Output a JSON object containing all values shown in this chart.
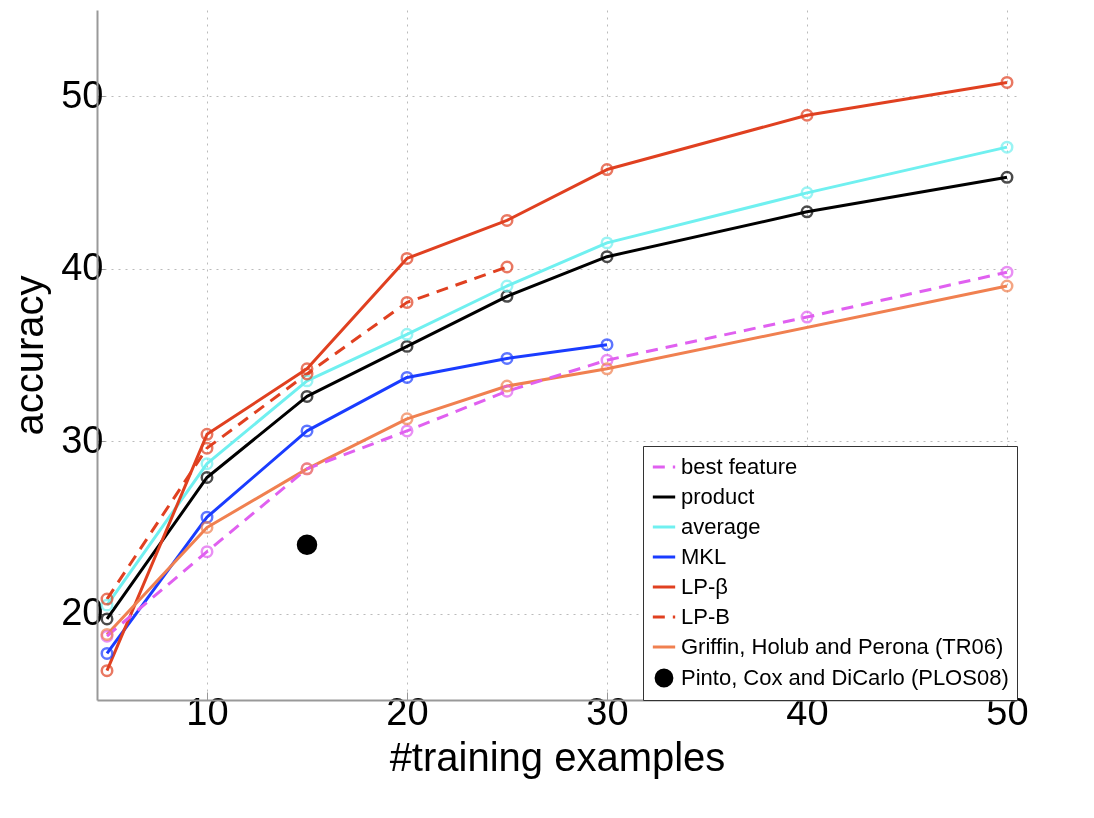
{
  "chart_data": {
    "type": "line",
    "xlabel": "#training examples",
    "ylabel": "accuracy",
    "xlim": [
      4.5,
      50.5
    ],
    "ylim": [
      15,
      55
    ],
    "xticks": [
      10,
      20,
      30,
      40,
      50
    ],
    "yticks": [
      20,
      30,
      40,
      50
    ],
    "grid": true,
    "legend": "bottom right",
    "marker": "circle",
    "line_style": "solid",
    "series": [
      {
        "name": "best feature",
        "color": "#e060f0",
        "line_style": "dashed",
        "x": [
          5,
          10,
          15,
          20,
          25,
          30,
          40,
          50
        ],
        "values": [
          18.7,
          23.6,
          28.4,
          30.6,
          32.9,
          34.7,
          37.2,
          39.8
        ]
      },
      {
        "name": "product",
        "color": "#000000",
        "x": [
          5,
          10,
          15,
          20,
          25,
          30,
          40,
          50
        ],
        "values": [
          19.7,
          27.9,
          32.6,
          35.5,
          38.4,
          40.7,
          43.3,
          45.3
        ]
      },
      {
        "name": "average",
        "color": "#70f0f0",
        "x": [
          5,
          10,
          15,
          20,
          25,
          30,
          40,
          50
        ],
        "values": [
          20.5,
          28.7,
          33.5,
          36.2,
          39.0,
          41.5,
          44.4,
          47.05
        ]
      },
      {
        "name": "MKL",
        "color": "#1a3cff",
        "x": [
          5,
          10,
          15,
          20,
          25,
          30
        ],
        "values": [
          17.7,
          25.6,
          30.6,
          33.7,
          34.8,
          35.6
        ]
      },
      {
        "name": "LP-β",
        "color": "#e04020",
        "x": [
          5,
          10,
          15,
          20,
          25,
          30,
          40,
          50
        ],
        "values": [
          16.7,
          30.4,
          34.2,
          40.6,
          42.8,
          45.75,
          48.9,
          50.8
        ]
      },
      {
        "name": "LP-B",
        "color": "#e04020",
        "line_style": "dashed",
        "x": [
          5,
          10,
          15,
          20,
          25
        ],
        "values": [
          20.85,
          29.6,
          33.9,
          38.05,
          40.1
        ]
      },
      {
        "name": "Griffin, Holub and Perona (TR06)",
        "color": "#f08050",
        "x": [
          5,
          10,
          15,
          20,
          25,
          30,
          50
        ],
        "values": [
          18.8,
          25.0,
          28.4,
          31.3,
          33.2,
          34.2,
          39.0
        ]
      },
      {
        "name": "Pinto, Cox and DiCarlo (PLOS08)",
        "color": "#000000",
        "type": "scatter",
        "x": [
          15
        ],
        "values": [
          24.0
        ]
      }
    ]
  }
}
